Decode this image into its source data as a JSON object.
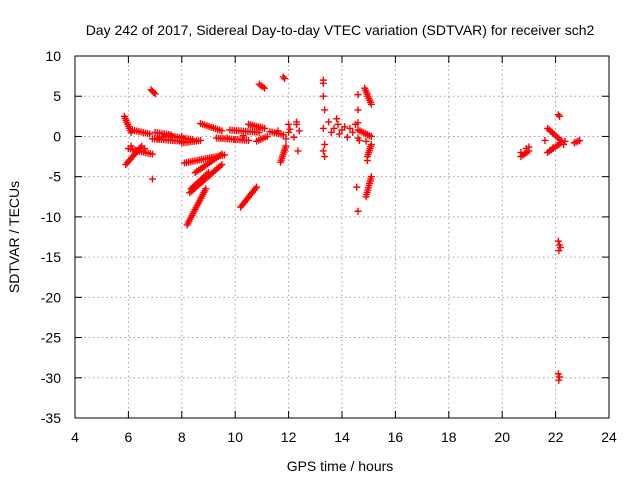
{
  "chart_data": {
    "type": "scatter",
    "title": "Day 242 of 2017, Sidereal Day-to-day VTEC variation (SDTVAR) for receiver sch2",
    "xlabel": "GPS time / hours",
    "ylabel": "SDTVAR / TECUs",
    "xlim": [
      4,
      24
    ],
    "ylim": [
      -35,
      10
    ],
    "xticks": [
      4,
      6,
      8,
      10,
      12,
      14,
      16,
      18,
      20,
      22,
      24
    ],
    "yticks": [
      10,
      5,
      0,
      -5,
      -10,
      -15,
      -20,
      -25,
      -30,
      -35
    ],
    "grid": true,
    "marker": "+",
    "color": "#ff0000",
    "tracks": [
      {
        "x": [
          5.85,
          6.1
        ],
        "y": [
          2.5,
          0.5
        ]
      },
      {
        "x": [
          5.9,
          6.5
        ],
        "y": [
          -3.5,
          -1.2
        ]
      },
      {
        "x": [
          6.0,
          6.9
        ],
        "y": [
          -1.5,
          -2.2
        ]
      },
      {
        "x": [
          6.15,
          6.8
        ],
        "y": [
          0.8,
          0.3
        ]
      },
      {
        "x": [
          6.85,
          7.0
        ],
        "y": [
          5.8,
          5.3
        ]
      },
      {
        "x": [
          6.9,
          8.0
        ],
        "y": [
          -0.3,
          -0.6
        ]
      },
      {
        "x": [
          7.0,
          7.6
        ],
        "y": [
          0.5,
          0.2
        ]
      },
      {
        "x": [
          7.5,
          8.4
        ],
        "y": [
          0.1,
          -0.4
        ]
      },
      {
        "x": [
          8.0,
          8.7
        ],
        "y": [
          -0.8,
          -0.5
        ]
      },
      {
        "x": [
          8.2,
          8.9
        ],
        "y": [
          -11.0,
          -6.5
        ]
      },
      {
        "x": [
          8.3,
          9.5
        ],
        "y": [
          -7.0,
          -3.5
        ]
      },
      {
        "x": [
          8.35,
          9.0
        ],
        "y": [
          -6.5,
          -4.5
        ]
      },
      {
        "x": [
          8.5,
          9.5
        ],
        "y": [
          -4.5,
          -2.2
        ]
      },
      {
        "x": [
          8.1,
          9.6
        ],
        "y": [
          -3.3,
          -2.3
        ]
      },
      {
        "x": [
          8.7,
          9.5
        ],
        "y": [
          1.6,
          0.7
        ]
      },
      {
        "x": [
          9.3,
          10.5
        ],
        "y": [
          -0.2,
          -0.5
        ]
      },
      {
        "x": [
          9.8,
          10.9
        ],
        "y": [
          0.8,
          0.5
        ]
      },
      {
        "x": [
          10.2,
          10.8
        ],
        "y": [
          -8.8,
          -6.3
        ]
      },
      {
        "x": [
          10.5,
          11.1
        ],
        "y": [
          1.5,
          1.0
        ]
      },
      {
        "x": [
          10.8,
          11.2
        ],
        "y": [
          -0.6,
          0.0
        ]
      },
      {
        "x": [
          10.9,
          11.1
        ],
        "y": [
          6.5,
          6.0
        ]
      },
      {
        "x": [
          11.3,
          11.8
        ],
        "y": [
          0.6,
          0.2
        ]
      },
      {
        "x": [
          11.7,
          11.9
        ],
        "y": [
          -3.2,
          -1.2
        ]
      },
      {
        "x": [
          14.6,
          15.1
        ],
        "y": [
          0.8,
          0.0
        ]
      },
      {
        "x": [
          14.85,
          15.1
        ],
        "y": [
          6.0,
          4.0
        ]
      },
      {
        "x": [
          14.9,
          15.1
        ],
        "y": [
          -7.5,
          -5.0
        ]
      },
      {
        "x": [
          14.95,
          15.1
        ],
        "y": [
          -2.5,
          -1.0
        ]
      },
      {
        "x": [
          20.7,
          21.0
        ],
        "y": [
          -2.5,
          -1.8
        ]
      },
      {
        "x": [
          21.7,
          22.2
        ],
        "y": [
          1.0,
          -0.5
        ]
      },
      {
        "x": [
          21.7,
          22.2
        ],
        "y": [
          -2.0,
          -0.8
        ]
      },
      {
        "x": [
          22.7,
          22.9
        ],
        "y": [
          -0.8,
          -0.5
        ]
      }
    ],
    "points": [
      [
        6.1,
        -1.2
      ],
      [
        6.3,
        -1.8
      ],
      [
        6.6,
        -1.5
      ],
      [
        6.9,
        -5.3
      ],
      [
        7.1,
        -0.2
      ],
      [
        7.3,
        -0.1
      ],
      [
        7.6,
        0.0
      ],
      [
        8.0,
        0.0
      ],
      [
        9.7,
        -0.2
      ],
      [
        10.0,
        -0.4
      ],
      [
        10.3,
        0.1
      ],
      [
        11.6,
        0.7
      ],
      [
        11.8,
        7.4
      ],
      [
        11.85,
        7.2
      ],
      [
        11.9,
        -0.3
      ],
      [
        12.0,
        1.5
      ],
      [
        12.0,
        0.5
      ],
      [
        12.05,
        0.9
      ],
      [
        12.2,
        -0.1
      ],
      [
        12.3,
        1.8
      ],
      [
        12.3,
        1.5
      ],
      [
        12.35,
        -1.8
      ],
      [
        12.4,
        0.7
      ],
      [
        13.3,
        7.0
      ],
      [
        13.3,
        6.6
      ],
      [
        13.3,
        5.0
      ],
      [
        13.35,
        3.3
      ],
      [
        13.3,
        1.0
      ],
      [
        13.35,
        -1.0
      ],
      [
        13.3,
        -1.8
      ],
      [
        13.35,
        -2.5
      ],
      [
        13.5,
        1.8
      ],
      [
        13.6,
        0.5
      ],
      [
        13.7,
        1.0
      ],
      [
        13.8,
        2.2
      ],
      [
        13.85,
        1.5
      ],
      [
        13.9,
        0.3
      ],
      [
        14.0,
        0.8
      ],
      [
        14.1,
        1.2
      ],
      [
        14.2,
        -0.1
      ],
      [
        14.3,
        1.0
      ],
      [
        14.4,
        0.5
      ],
      [
        14.5,
        1.5
      ],
      [
        14.6,
        1.7
      ],
      [
        14.6,
        5.2
      ],
      [
        14.6,
        3.3
      ],
      [
        14.6,
        -0.2
      ],
      [
        14.65,
        -0.5
      ],
      [
        14.55,
        -6.3
      ],
      [
        14.6,
        -9.3
      ],
      [
        14.9,
        -0.6
      ],
      [
        14.95,
        -3.0
      ],
      [
        20.7,
        -2.0
      ],
      [
        20.9,
        -1.5
      ],
      [
        21.0,
        -1.3
      ],
      [
        21.6,
        -0.5
      ],
      [
        21.9,
        -1.4
      ],
      [
        22.1,
        2.7
      ],
      [
        22.15,
        2.5
      ],
      [
        22.3,
        -1.0
      ],
      [
        22.35,
        -0.6
      ],
      [
        22.1,
        -13.0
      ],
      [
        22.15,
        -13.5
      ],
      [
        22.12,
        -14.2
      ],
      [
        22.18,
        -13.8
      ],
      [
        22.1,
        -29.5
      ],
      [
        22.15,
        -29.9
      ],
      [
        22.12,
        -30.3
      ]
    ]
  }
}
